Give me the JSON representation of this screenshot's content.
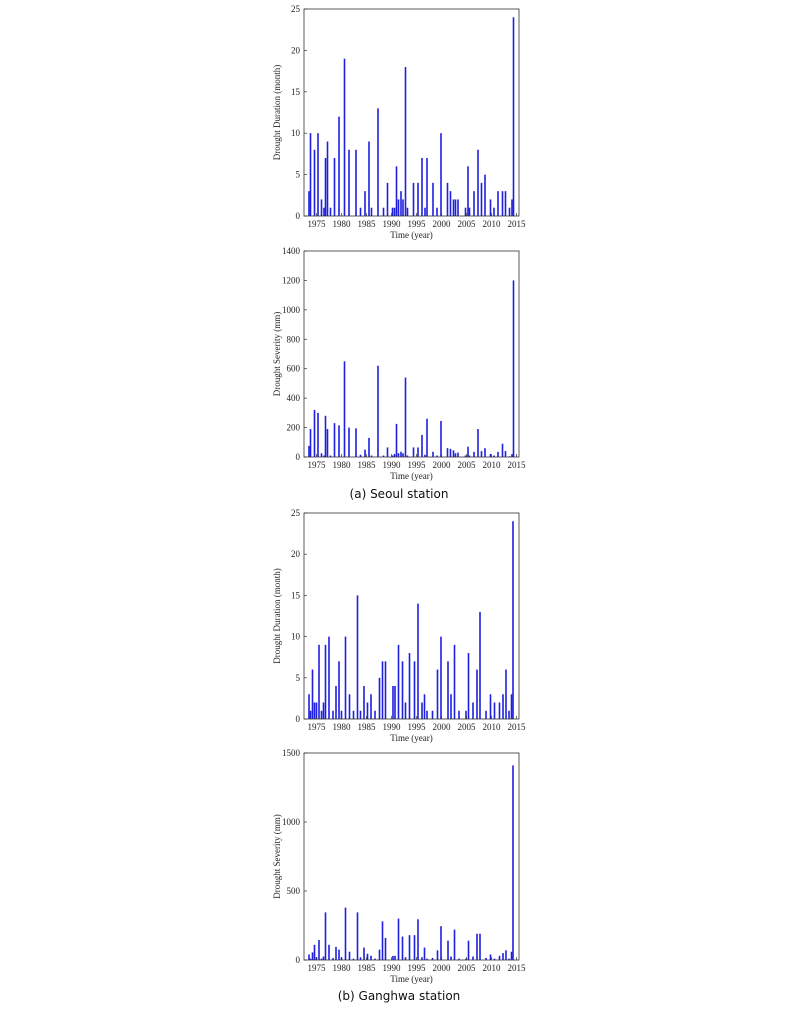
{
  "captions": {
    "a": "(a) Seoul station",
    "b": "(b) Ganghwa station"
  },
  "colors": {
    "bar": "#1f1fe0"
  },
  "chart_data": [
    {
      "type": "bar",
      "xlabel": "Time (year)",
      "ylabel": "Drought Duration (month)",
      "xlim": [
        1972.5,
        2015.5
      ],
      "ylim": [
        0,
        25
      ],
      "xticks": [
        1975,
        1980,
        1985,
        1990,
        1995,
        2000,
        2005,
        2010,
        2015
      ],
      "yticks": [
        0,
        5,
        10,
        15,
        20,
        25
      ],
      "x": [
        1973.5,
        1973.8,
        1974.6,
        1975.3,
        1976.0,
        1976.5,
        1976.8,
        1977.2,
        1977.8,
        1978.6,
        1979.5,
        1980.6,
        1981.5,
        1982.9,
        1983.8,
        1984.7,
        1985.5,
        1986.0,
        1987.3,
        1988.4,
        1989.2,
        1990.2,
        1990.6,
        1991.0,
        1991.4,
        1991.9,
        1992.3,
        1992.8,
        1993.2,
        1994.4,
        1995.3,
        1996.1,
        1996.7,
        1997.1,
        1998.3,
        1999.1,
        1999.9,
        2001.2,
        2001.8,
        2002.4,
        2002.8,
        2003.3,
        2004.8,
        2005.3,
        2005.6,
        2006.5,
        2007.3,
        2008.0,
        2008.7,
        2009.8,
        2010.5,
        2011.3,
        2012.2,
        2012.8,
        2013.6,
        2014.1,
        2014.4
      ],
      "series": [
        {
          "values": [
            3,
            10,
            8,
            10,
            2,
            1,
            7,
            9,
            1,
            7,
            12,
            19,
            8,
            8,
            1,
            3,
            9,
            1,
            13,
            1,
            4,
            1,
            1,
            6,
            2,
            3,
            2,
            18,
            1,
            4,
            4,
            7,
            1,
            7,
            4,
            1,
            10,
            4,
            3,
            2,
            2,
            2,
            1,
            6,
            1,
            3,
            8,
            4,
            5,
            2,
            1,
            3,
            3,
            3,
            1,
            2,
            24
          ]
        }
      ]
    },
    {
      "type": "bar",
      "xlabel": "Time (year)",
      "ylabel": "Drought Severity (mm)",
      "xlim": [
        1972.5,
        2015.5
      ],
      "ylim": [
        0,
        1400
      ],
      "xticks": [
        1975,
        1980,
        1985,
        1990,
        1995,
        2000,
        2005,
        2010,
        2015
      ],
      "yticks": [
        0,
        200,
        400,
        600,
        800,
        1000,
        1200,
        1400
      ],
      "x": [
        1973.5,
        1973.8,
        1974.6,
        1975.3,
        1976.0,
        1976.5,
        1976.8,
        1977.2,
        1977.8,
        1978.6,
        1979.5,
        1980.6,
        1981.5,
        1982.9,
        1983.8,
        1984.7,
        1985.5,
        1986.0,
        1987.3,
        1988.4,
        1989.2,
        1990.2,
        1990.6,
        1991.0,
        1991.4,
        1991.9,
        1992.3,
        1992.8,
        1993.2,
        1994.4,
        1995.3,
        1996.1,
        1996.7,
        1997.1,
        1998.3,
        1999.1,
        1999.9,
        2001.2,
        2001.8,
        2002.4,
        2002.8,
        2003.3,
        2004.8,
        2005.3,
        2005.6,
        2006.5,
        2007.3,
        2008.0,
        2008.7,
        2009.8,
        2010.5,
        2011.3,
        2012.2,
        2012.8,
        2013.6,
        2014.1,
        2014.4
      ],
      "series": [
        {
          "values": [
            75,
            190,
            320,
            300,
            25,
            10,
            280,
            190,
            10,
            230,
            215,
            650,
            200,
            195,
            15,
            50,
            130,
            10,
            620,
            10,
            65,
            10,
            20,
            225,
            25,
            35,
            25,
            540,
            10,
            65,
            65,
            150,
            15,
            260,
            35,
            10,
            245,
            60,
            55,
            45,
            25,
            30,
            10,
            70,
            10,
            35,
            190,
            40,
            60,
            20,
            10,
            35,
            90,
            40,
            5,
            20,
            1200
          ]
        }
      ]
    },
    {
      "type": "bar",
      "xlabel": "Time (year)",
      "ylabel": "Drought Duration (month)",
      "xlim": [
        1972.5,
        2015.5
      ],
      "ylim": [
        0,
        25
      ],
      "xticks": [
        1975,
        1980,
        1985,
        1990,
        1995,
        2000,
        2005,
        2010,
        2015
      ],
      "yticks": [
        0,
        5,
        10,
        15,
        20,
        25
      ],
      "x": [
        1973.5,
        1973.8,
        1974.2,
        1974.6,
        1975.0,
        1975.5,
        1976.0,
        1976.4,
        1976.8,
        1977.5,
        1978.3,
        1978.9,
        1979.5,
        1980.0,
        1980.8,
        1981.6,
        1982.4,
        1983.2,
        1983.8,
        1984.5,
        1985.2,
        1985.9,
        1986.7,
        1987.6,
        1988.2,
        1988.8,
        1990.3,
        1990.7,
        1991.4,
        1992.2,
        1992.8,
        1993.6,
        1994.6,
        1995.3,
        1996.1,
        1996.6,
        1997.1,
        1998.2,
        1999.2,
        1999.9,
        2001.3,
        2001.9,
        2002.6,
        2003.5,
        2004.9,
        2005.4,
        2006.3,
        2007.1,
        2007.7,
        2008.9,
        2009.8,
        2010.6,
        2011.6,
        2012.3,
        2012.9,
        2013.5,
        2014.0,
        2014.3
      ],
      "series": [
        {
          "values": [
            3,
            1,
            6,
            2,
            2,
            9,
            1,
            2,
            9,
            10,
            1,
            4,
            7,
            1,
            10,
            3,
            1,
            15,
            1,
            4,
            2,
            3,
            1,
            5,
            7,
            7,
            4,
            4,
            9,
            7,
            2,
            8,
            7,
            14,
            2,
            3,
            1,
            1,
            6,
            10,
            7,
            3,
            9,
            1,
            1,
            8,
            2,
            6,
            13,
            1,
            3,
            2,
            2,
            3,
            6,
            1,
            3,
            24
          ]
        }
      ]
    },
    {
      "type": "bar",
      "xlabel": "Time (year)",
      "ylabel": "Drought Severity (mm)",
      "xlim": [
        1972.5,
        2015.5
      ],
      "ylim": [
        0,
        1500
      ],
      "xticks": [
        1975,
        1980,
        1985,
        1990,
        1995,
        2000,
        2005,
        2010,
        2015
      ],
      "yticks": [
        0,
        500,
        1000,
        1500
      ],
      "x": [
        1973.5,
        1973.8,
        1974.2,
        1974.6,
        1975.0,
        1975.5,
        1976.0,
        1976.4,
        1976.8,
        1977.5,
        1978.3,
        1978.9,
        1979.5,
        1980.0,
        1980.8,
        1981.6,
        1982.4,
        1983.2,
        1983.8,
        1984.5,
        1985.2,
        1985.9,
        1986.7,
        1987.6,
        1988.2,
        1988.8,
        1990.3,
        1990.7,
        1991.4,
        1992.2,
        1992.8,
        1993.6,
        1994.6,
        1995.3,
        1996.1,
        1996.6,
        1997.1,
        1998.2,
        1999.2,
        1999.9,
        2001.3,
        2001.9,
        2002.6,
        2003.5,
        2004.9,
        2005.4,
        2006.3,
        2007.1,
        2007.7,
        2008.9,
        2009.8,
        2010.6,
        2011.6,
        2012.3,
        2012.9,
        2013.5,
        2014.0,
        2014.3
      ],
      "series": [
        {
          "values": [
            40,
            10,
            55,
            110,
            20,
            145,
            10,
            25,
            345,
            110,
            15,
            95,
            75,
            20,
            380,
            60,
            10,
            345,
            20,
            90,
            45,
            30,
            10,
            75,
            280,
            160,
            30,
            30,
            300,
            170,
            20,
            180,
            180,
            295,
            20,
            90,
            10,
            15,
            70,
            245,
            140,
            25,
            220,
            10,
            10,
            140,
            25,
            190,
            190,
            15,
            40,
            10,
            30,
            50,
            70,
            10,
            60,
            1410
          ]
        }
      ]
    }
  ]
}
